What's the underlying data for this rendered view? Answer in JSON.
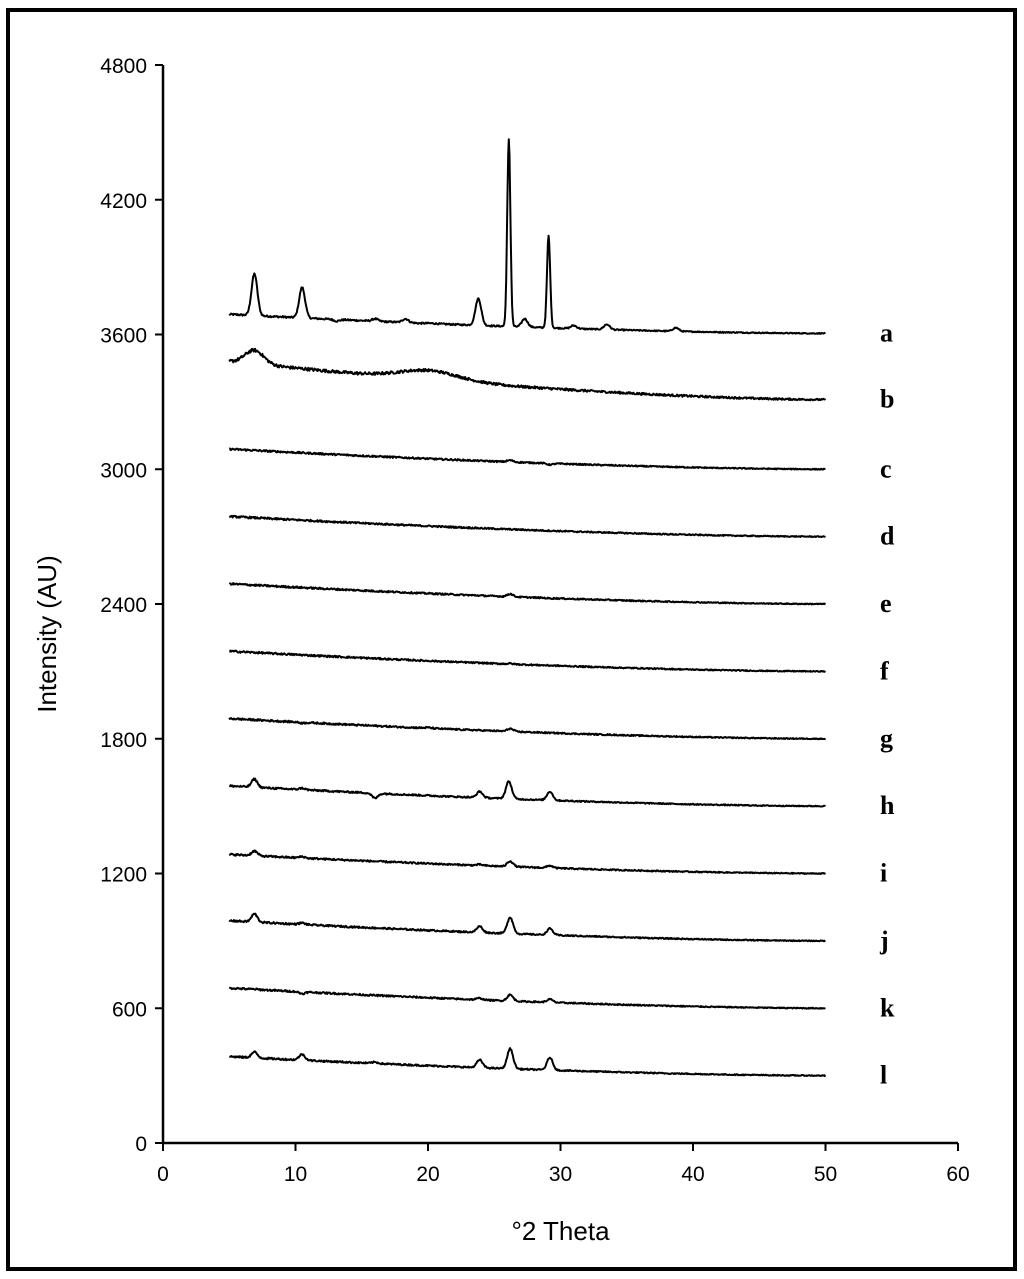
{
  "chart_data": {
    "type": "line",
    "title": "",
    "xlabel": "°2 Theta",
    "ylabel": "Intensity (AU)",
    "xlim": [
      0,
      60
    ],
    "ylim": [
      0,
      4800
    ],
    "x_ticks": [
      "0",
      "10",
      "20",
      "30",
      "40",
      "50",
      "60"
    ],
    "y_ticks": [
      "0",
      "600",
      "1200",
      "1800",
      "2400",
      "3000",
      "3600",
      "4200",
      "4800"
    ],
    "grid": false,
    "legend": "none",
    "series": [
      {
        "name": "a",
        "x_range": [
          5,
          50
        ],
        "baseline_start": 3690,
        "baseline_end": 3605,
        "peaks": [
          {
            "x": 6.9,
            "y": 3870
          },
          {
            "x": 10.5,
            "y": 3810
          },
          {
            "x": 13.1,
            "y": 3660
          },
          {
            "x": 16.0,
            "y": 3670
          },
          {
            "x": 18.3,
            "y": 3670
          },
          {
            "x": 19.3,
            "y": 3650
          },
          {
            "x": 20.3,
            "y": 3650
          },
          {
            "x": 21.8,
            "y": 3645
          },
          {
            "x": 23.8,
            "y": 3760
          },
          {
            "x": 26.1,
            "y": 4470
          },
          {
            "x": 27.3,
            "y": 3670
          },
          {
            "x": 29.1,
            "y": 4040
          },
          {
            "x": 31.0,
            "y": 3640
          },
          {
            "x": 33.5,
            "y": 3645
          },
          {
            "x": 38.7,
            "y": 3630
          }
        ]
      },
      {
        "name": "b",
        "x_range": [
          5,
          50
        ],
        "baseline_start": 3480,
        "baseline_end": 3310,
        "peaks": [
          {
            "x": 6.9,
            "y": 3530
          },
          {
            "x": 20.1,
            "y": 3440
          }
        ]
      },
      {
        "name": "c",
        "x_range": [
          5,
          50
        ],
        "baseline_start": 3090,
        "baseline_end": 3000,
        "peaks": [
          {
            "x": 26.2,
            "y": 3040
          },
          {
            "x": 29.2,
            "y": 3020
          }
        ]
      },
      {
        "name": "d",
        "x_range": [
          5,
          50
        ],
        "baseline_start": 2790,
        "baseline_end": 2700,
        "peaks": []
      },
      {
        "name": "e",
        "x_range": [
          5,
          50
        ],
        "baseline_start": 2490,
        "baseline_end": 2400,
        "peaks": [
          {
            "x": 26.2,
            "y": 2445
          },
          {
            "x": 29.2,
            "y": 2425
          }
        ]
      },
      {
        "name": "f",
        "x_range": [
          5,
          50
        ],
        "baseline_start": 2190,
        "baseline_end": 2100,
        "peaks": [
          {
            "x": 26.2,
            "y": 2135
          }
        ]
      },
      {
        "name": "g",
        "x_range": [
          5,
          50
        ],
        "baseline_start": 1890,
        "baseline_end": 1800,
        "peaks": [
          {
            "x": 10.5,
            "y": 1870
          },
          {
            "x": 20.0,
            "y": 1850
          },
          {
            "x": 26.2,
            "y": 1845
          }
        ]
      },
      {
        "name": "h",
        "x_range": [
          5,
          50
        ],
        "baseline_start": 1590,
        "baseline_end": 1500,
        "peaks": [
          {
            "x": 6.9,
            "y": 1620
          },
          {
            "x": 10.5,
            "y": 1580
          },
          {
            "x": 16.0,
            "y": 1535
          },
          {
            "x": 23.9,
            "y": 1565
          },
          {
            "x": 26.1,
            "y": 1610
          },
          {
            "x": 29.2,
            "y": 1565
          }
        ]
      },
      {
        "name": "i",
        "x_range": [
          5,
          50
        ],
        "baseline_start": 1285,
        "baseline_end": 1200,
        "peaks": [
          {
            "x": 6.9,
            "y": 1300
          },
          {
            "x": 10.5,
            "y": 1275
          },
          {
            "x": 23.9,
            "y": 1240
          },
          {
            "x": 26.2,
            "y": 1255
          },
          {
            "x": 29.2,
            "y": 1235
          }
        ]
      },
      {
        "name": "j",
        "x_range": [
          5,
          50
        ],
        "baseline_start": 990,
        "baseline_end": 900,
        "peaks": [
          {
            "x": 6.9,
            "y": 1020
          },
          {
            "x": 10.5,
            "y": 980
          },
          {
            "x": 23.9,
            "y": 965
          },
          {
            "x": 26.2,
            "y": 1005
          },
          {
            "x": 29.2,
            "y": 955
          }
        ]
      },
      {
        "name": "k",
        "x_range": [
          5,
          50
        ],
        "baseline_start": 690,
        "baseline_end": 600,
        "peaks": [
          {
            "x": 6.9,
            "y": 685
          },
          {
            "x": 10.5,
            "y": 665
          },
          {
            "x": 23.9,
            "y": 645
          },
          {
            "x": 26.2,
            "y": 660
          },
          {
            "x": 29.2,
            "y": 640
          }
        ]
      },
      {
        "name": "l",
        "x_range": [
          5,
          50
        ],
        "baseline_start": 385,
        "baseline_end": 300,
        "peaks": [
          {
            "x": 6.9,
            "y": 405
          },
          {
            "x": 10.5,
            "y": 395
          },
          {
            "x": 16.0,
            "y": 360
          },
          {
            "x": 23.9,
            "y": 370
          },
          {
            "x": 26.2,
            "y": 420
          },
          {
            "x": 29.2,
            "y": 380
          }
        ]
      }
    ]
  }
}
